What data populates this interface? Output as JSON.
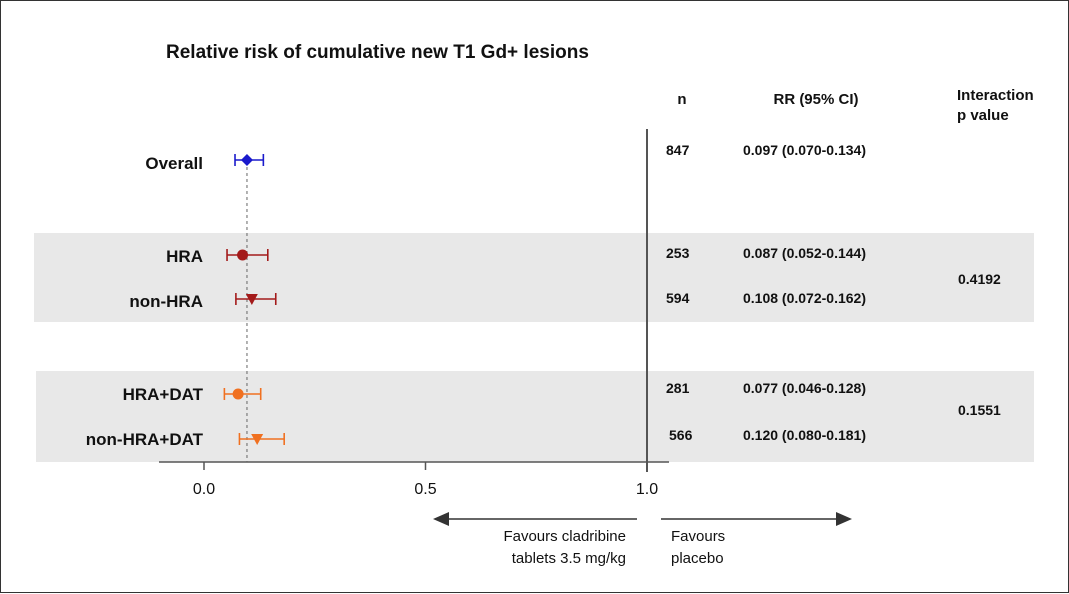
{
  "chart_data": {
    "type": "forest",
    "title": "Relative risk of cumulative new T1 Gd+ lesions",
    "columns": {
      "n": "n",
      "rr": "RR (95% CI)",
      "interaction_line1": "Interaction",
      "interaction_line2": "p value"
    },
    "reference_line": 1.0,
    "overall_estimate_line": 0.097,
    "xlim": [
      -0.1,
      1.05
    ],
    "x_ticks": [
      {
        "value": 0.0,
        "label": "0.0"
      },
      {
        "value": 0.5,
        "label": "0.5"
      },
      {
        "value": 1.0,
        "label": "1.0"
      }
    ],
    "rows": [
      {
        "label": "Overall",
        "n": "847",
        "rr_text": "0.097 (0.070-0.134)",
        "estimate": 0.097,
        "ci_low": 0.07,
        "ci_high": 0.134,
        "marker": "diamond",
        "color": "#1a1acc"
      },
      {
        "label": "HRA",
        "n": "253",
        "rr_text": "0.087 (0.052-0.144)",
        "estimate": 0.087,
        "ci_low": 0.052,
        "ci_high": 0.144,
        "marker": "circle",
        "color": "#a31a1a"
      },
      {
        "label": "non-HRA",
        "n": "594",
        "rr_text": "0.108 (0.072-0.162)",
        "estimate": 0.108,
        "ci_low": 0.072,
        "ci_high": 0.162,
        "marker": "triangle-down",
        "color": "#a31a1a"
      },
      {
        "label": "HRA+DAT",
        "n": "281",
        "rr_text": "0.077 (0.046-0.128)",
        "estimate": 0.077,
        "ci_low": 0.046,
        "ci_high": 0.128,
        "marker": "circle",
        "color": "#f07020"
      },
      {
        "label": "non-HRA+DAT",
        "n": "566",
        "rr_text": "0.120 (0.080-0.181)",
        "estimate": 0.12,
        "ci_low": 0.08,
        "ci_high": 0.181,
        "marker": "triangle-down",
        "color": "#f07020"
      }
    ],
    "groups": [
      {
        "rows": [
          1,
          2
        ],
        "interaction_p": "0.4192",
        "shaded": true
      },
      {
        "rows": [
          3,
          4
        ],
        "interaction_p": "0.1551",
        "shaded": true
      }
    ],
    "favours_left_line1": "Favours cladribine",
    "favours_left_line2": "tablets 3.5 mg/kg",
    "favours_right_line1": "Favours",
    "favours_right_line2": "placebo"
  }
}
